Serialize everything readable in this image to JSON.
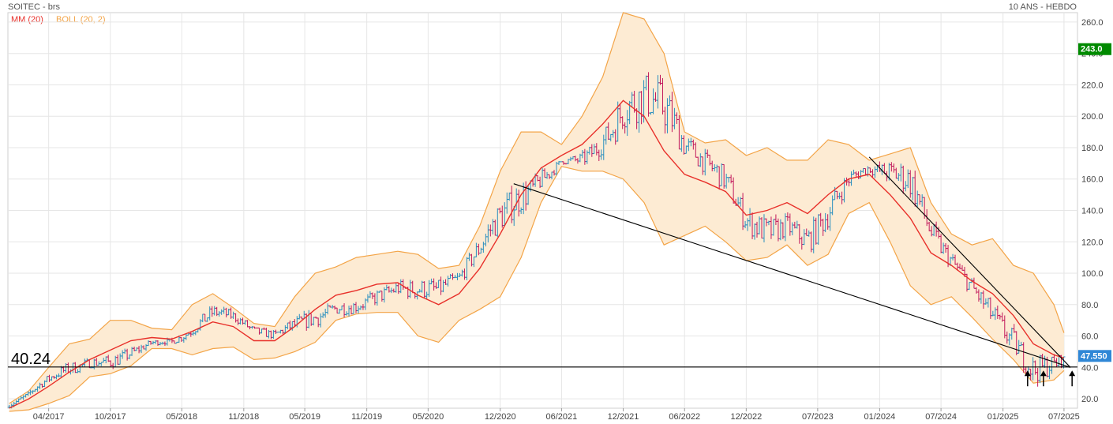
{
  "header": {
    "title": "SOITEC - brs",
    "period": "10 ANS - HEBDO",
    "legend_ma": "MM (20)",
    "legend_boll": "BOLL (20, 2)"
  },
  "colors": {
    "price_up": "#2a8fbf",
    "price_down": "#c2185b",
    "ma": "#e8302a",
    "boll_fill": "#fdebd3",
    "boll_line": "#f3a447",
    "grid": "#e6e6e6",
    "last_badge_bg": "#008a00",
    "current_badge_bg": "#2f87d6",
    "trendline": "#000000"
  },
  "chart_data": {
    "type": "line",
    "title": "SOITEC - brs",
    "x_ticks": [
      "04/2017",
      "10/2017",
      "05/2018",
      "11/2018",
      "05/2019",
      "11/2019",
      "05/2020",
      "12/2020",
      "06/2021",
      "12/2021",
      "06/2022",
      "12/2022",
      "07/2023",
      "01/2024",
      "07/2024",
      "01/2025",
      "07/2025"
    ],
    "y_ticks": [
      20,
      40,
      60,
      80,
      100,
      120,
      140,
      160,
      180,
      200,
      220,
      240,
      260
    ],
    "ylim": [
      14,
      266
    ],
    "xlim": [
      "2016-12-01",
      "2025-08-10"
    ],
    "series": [
      {
        "name": "MM (20)",
        "points": [
          [
            "2016-12-05",
            14
          ],
          [
            "2017-02-01",
            20
          ],
          [
            "2017-04-01",
            28
          ],
          [
            "2017-06-01",
            37
          ],
          [
            "2017-08-01",
            45
          ],
          [
            "2017-10-01",
            51
          ],
          [
            "2017-12-01",
            57
          ],
          [
            "2018-02-01",
            59
          ],
          [
            "2018-04-01",
            58
          ],
          [
            "2018-06-01",
            63
          ],
          [
            "2018-08-01",
            69
          ],
          [
            "2018-10-01",
            66
          ],
          [
            "2018-12-01",
            57
          ],
          [
            "2019-02-01",
            57
          ],
          [
            "2019-04-01",
            66
          ],
          [
            "2019-06-01",
            77
          ],
          [
            "2019-08-01",
            86
          ],
          [
            "2019-10-01",
            89
          ],
          [
            "2019-12-01",
            93
          ],
          [
            "2020-02-01",
            94
          ],
          [
            "2020-04-01",
            86
          ],
          [
            "2020-06-01",
            80
          ],
          [
            "2020-08-01",
            87
          ],
          [
            "2020-10-01",
            103
          ],
          [
            "2020-12-01",
            125
          ],
          [
            "2021-02-01",
            150
          ],
          [
            "2021-04-01",
            167
          ],
          [
            "2021-06-01",
            175
          ],
          [
            "2021-08-01",
            182
          ],
          [
            "2021-10-01",
            195
          ],
          [
            "2021-12-01",
            210
          ],
          [
            "2022-02-01",
            200
          ],
          [
            "2022-04-01",
            178
          ],
          [
            "2022-06-01",
            163
          ],
          [
            "2022-08-01",
            158
          ],
          [
            "2022-10-01",
            152
          ],
          [
            "2022-12-01",
            137
          ],
          [
            "2023-02-01",
            140
          ],
          [
            "2023-04-01",
            145
          ],
          [
            "2023-06-01",
            138
          ],
          [
            "2023-08-01",
            150
          ],
          [
            "2023-10-01",
            160
          ],
          [
            "2023-12-01",
            163
          ],
          [
            "2024-02-01",
            150
          ],
          [
            "2024-04-01",
            135
          ],
          [
            "2024-06-01",
            113
          ],
          [
            "2024-08-01",
            105
          ],
          [
            "2024-10-01",
            95
          ],
          [
            "2024-12-01",
            87
          ],
          [
            "2025-02-01",
            73
          ],
          [
            "2025-04-01",
            55
          ],
          [
            "2025-06-01",
            48
          ],
          [
            "2025-07-01",
            46
          ]
        ]
      },
      {
        "name": "BOLL (20, 2) upper",
        "points": [
          [
            "2016-12-05",
            17
          ],
          [
            "2017-02-01",
            25
          ],
          [
            "2017-04-01",
            40
          ],
          [
            "2017-06-01",
            55
          ],
          [
            "2017-08-01",
            58
          ],
          [
            "2017-10-01",
            70
          ],
          [
            "2017-12-01",
            70
          ],
          [
            "2018-02-01",
            65
          ],
          [
            "2018-04-01",
            64
          ],
          [
            "2018-06-01",
            80
          ],
          [
            "2018-08-01",
            87
          ],
          [
            "2018-10-01",
            78
          ],
          [
            "2018-12-01",
            68
          ],
          [
            "2019-02-01",
            66
          ],
          [
            "2019-04-01",
            85
          ],
          [
            "2019-06-01",
            100
          ],
          [
            "2019-08-01",
            104
          ],
          [
            "2019-10-01",
            110
          ],
          [
            "2019-12-01",
            112
          ],
          [
            "2020-02-01",
            114
          ],
          [
            "2020-04-01",
            112
          ],
          [
            "2020-06-01",
            103
          ],
          [
            "2020-08-01",
            105
          ],
          [
            "2020-10-01",
            130
          ],
          [
            "2020-12-01",
            165
          ],
          [
            "2021-02-01",
            190
          ],
          [
            "2021-04-01",
            190
          ],
          [
            "2021-06-01",
            182
          ],
          [
            "2021-08-01",
            200
          ],
          [
            "2021-10-01",
            225
          ],
          [
            "2021-12-01",
            266
          ],
          [
            "2022-02-01",
            262
          ],
          [
            "2022-04-01",
            240
          ],
          [
            "2022-06-01",
            190
          ],
          [
            "2022-08-01",
            183
          ],
          [
            "2022-10-01",
            185
          ],
          [
            "2022-12-01",
            175
          ],
          [
            "2023-02-01",
            180
          ],
          [
            "2023-04-01",
            172
          ],
          [
            "2023-06-01",
            172
          ],
          [
            "2023-08-01",
            185
          ],
          [
            "2023-10-01",
            182
          ],
          [
            "2023-12-01",
            172
          ],
          [
            "2024-02-01",
            176
          ],
          [
            "2024-04-01",
            180
          ],
          [
            "2024-06-01",
            145
          ],
          [
            "2024-08-01",
            125
          ],
          [
            "2024-10-01",
            118
          ],
          [
            "2024-12-01",
            122
          ],
          [
            "2025-02-01",
            105
          ],
          [
            "2025-04-01",
            100
          ],
          [
            "2025-06-01",
            80
          ],
          [
            "2025-07-01",
            62
          ]
        ]
      },
      {
        "name": "BOLL (20, 2) lower",
        "points": [
          [
            "2016-12-05",
            12
          ],
          [
            "2017-02-01",
            13
          ],
          [
            "2017-04-01",
            17
          ],
          [
            "2017-06-01",
            22
          ],
          [
            "2017-08-01",
            34
          ],
          [
            "2017-10-01",
            36
          ],
          [
            "2017-12-01",
            41
          ],
          [
            "2018-02-01",
            52
          ],
          [
            "2018-04-01",
            52
          ],
          [
            "2018-06-01",
            48
          ],
          [
            "2018-08-01",
            52
          ],
          [
            "2018-10-01",
            53
          ],
          [
            "2018-12-01",
            45
          ],
          [
            "2019-02-01",
            46
          ],
          [
            "2019-04-01",
            50
          ],
          [
            "2019-06-01",
            56
          ],
          [
            "2019-08-01",
            70
          ],
          [
            "2019-10-01",
            74
          ],
          [
            "2019-12-01",
            75
          ],
          [
            "2020-02-01",
            75
          ],
          [
            "2020-04-01",
            60
          ],
          [
            "2020-06-01",
            56
          ],
          [
            "2020-08-01",
            70
          ],
          [
            "2020-10-01",
            77
          ],
          [
            "2020-12-01",
            85
          ],
          [
            "2021-02-01",
            110
          ],
          [
            "2021-04-01",
            145
          ],
          [
            "2021-06-01",
            168
          ],
          [
            "2021-08-01",
            165
          ],
          [
            "2021-10-01",
            165
          ],
          [
            "2021-12-01",
            160
          ],
          [
            "2022-02-01",
            145
          ],
          [
            "2022-04-01",
            118
          ],
          [
            "2022-06-01",
            124
          ],
          [
            "2022-08-01",
            130
          ],
          [
            "2022-10-01",
            120
          ],
          [
            "2022-12-01",
            108
          ],
          [
            "2023-02-01",
            110
          ],
          [
            "2023-04-01",
            118
          ],
          [
            "2023-06-01",
            105
          ],
          [
            "2023-08-01",
            112
          ],
          [
            "2023-10-01",
            138
          ],
          [
            "2023-12-01",
            145
          ],
          [
            "2024-02-01",
            120
          ],
          [
            "2024-04-01",
            92
          ],
          [
            "2024-06-01",
            80
          ],
          [
            "2024-08-01",
            85
          ],
          [
            "2024-10-01",
            72
          ],
          [
            "2024-12-01",
            58
          ],
          [
            "2025-02-01",
            45
          ],
          [
            "2025-04-01",
            30
          ],
          [
            "2025-06-01",
            32
          ],
          [
            "2025-07-01",
            38
          ]
        ]
      }
    ],
    "support_level": 40.24,
    "support_label": "40.24",
    "last_price": "47.550",
    "marker_price": "243.0",
    "trendlines": [
      {
        "from": [
          "2021-01-10",
          157
        ],
        "to": [
          "2025-07-20",
          40
        ]
      },
      {
        "from": [
          "2023-12-01",
          174
        ],
        "to": [
          "2025-07-20",
          40
        ]
      }
    ],
    "arrows": [
      {
        "date": "2025-03-15",
        "value": 32
      },
      {
        "date": "2025-05-01",
        "value": 32
      },
      {
        "date": "2025-07-25",
        "value": 32
      }
    ]
  }
}
